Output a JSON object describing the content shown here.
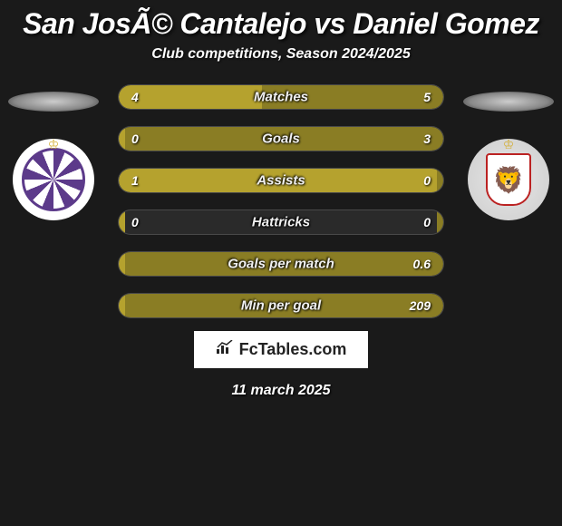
{
  "title": "San JosÃ© Cantalejo vs Daniel Gomez",
  "subtitle": "Club competitions, Season 2024/2025",
  "bar_color_left": "#b5a22e",
  "bar_color_right": "#8a7d24",
  "bar_bg": "#2a2a2a",
  "stats": [
    {
      "label": "Matches",
      "left_val": "4",
      "right_val": "5",
      "left_pct": 44,
      "right_pct": 56
    },
    {
      "label": "Goals",
      "left_val": "0",
      "right_val": "3",
      "left_pct": 2,
      "right_pct": 98
    },
    {
      "label": "Assists",
      "left_val": "1",
      "right_val": "0",
      "left_pct": 98,
      "right_pct": 2
    },
    {
      "label": "Hattricks",
      "left_val": "0",
      "right_val": "0",
      "left_pct": 2,
      "right_pct": 2
    },
    {
      "label": "Goals per match",
      "left_val": "",
      "right_val": "0.6",
      "left_pct": 2,
      "right_pct": 98
    },
    {
      "label": "Min per goal",
      "left_val": "",
      "right_val": "209",
      "left_pct": 2,
      "right_pct": 98
    }
  ],
  "footer_brand": "FcTables.com",
  "footer_date": "11 march 2025"
}
